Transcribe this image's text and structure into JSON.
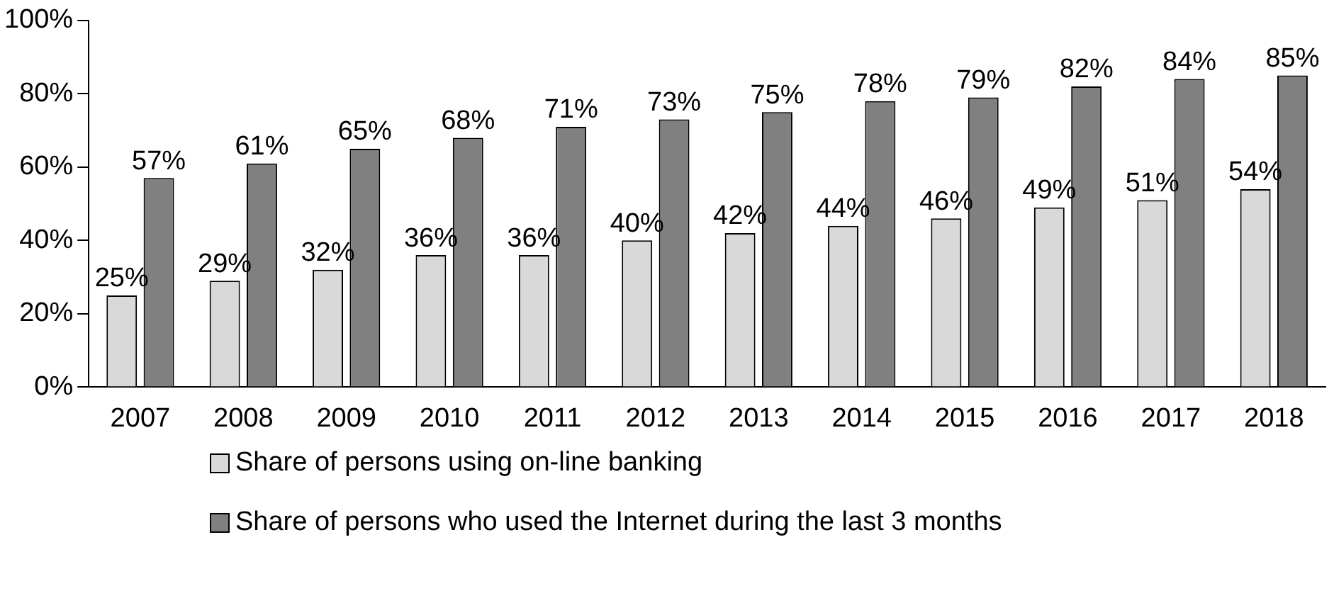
{
  "chart_data": {
    "type": "bar",
    "categories": [
      "2007",
      "2008",
      "2009",
      "2010",
      "2011",
      "2012",
      "2013",
      "2014",
      "2015",
      "2016",
      "2017",
      "2018"
    ],
    "series": [
      {
        "name": "Share of persons using on-line banking",
        "color": "#d9d9d9",
        "values": [
          25,
          29,
          32,
          36,
          36,
          40,
          42,
          44,
          46,
          49,
          51,
          54
        ],
        "value_labels": [
          "25%",
          "29%",
          "32%",
          "36%",
          "36%",
          "40%",
          "42%",
          "44%",
          "46%",
          "49%",
          "51%",
          "54%"
        ]
      },
      {
        "name": "Share of persons who used the Internet during the last 3 months",
        "color": "#808080",
        "values": [
          57,
          61,
          65,
          68,
          71,
          73,
          75,
          78,
          79,
          82,
          84,
          85
        ],
        "value_labels": [
          "57%",
          "61%",
          "65%",
          "68%",
          "71%",
          "73%",
          "75%",
          "78%",
          "79%",
          "82%",
          "84%",
          "85%"
        ]
      }
    ],
    "ylim": [
      0,
      100
    ],
    "yticks": [
      {
        "value": 0,
        "label": "0%"
      },
      {
        "value": 20,
        "label": "20%"
      },
      {
        "value": 40,
        "label": "40%"
      },
      {
        "value": 60,
        "label": "60%"
      },
      {
        "value": 80,
        "label": "80%"
      },
      {
        "value": 100,
        "label": "100%"
      }
    ],
    "grid": false,
    "legend": "bottom"
  }
}
